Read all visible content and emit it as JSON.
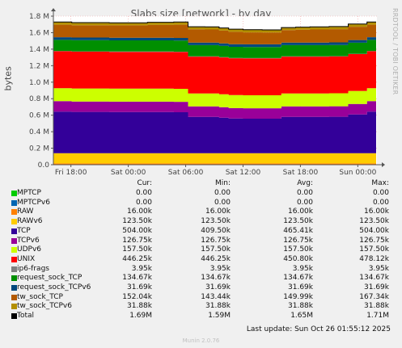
{
  "title": "Slabs size [network] - by day",
  "rrdtool_label": "RRDTOOL / TOBI OETIKER",
  "footer": {
    "last_update": "Last update: Sun Oct 26 01:55:12 2025",
    "munin": "Munin 2.0.76"
  },
  "legend_headers": {
    "cur": "Cur:",
    "min": "Min:",
    "avg": "Avg:",
    "max": "Max:"
  },
  "chart_data": {
    "type": "area",
    "stacked": true,
    "ylabel": "bytes",
    "ylim": [
      0,
      1800000
    ],
    "yticks": [
      0,
      200000,
      400000,
      600000,
      800000,
      1000000,
      1200000,
      1400000,
      1600000,
      1800000
    ],
    "ytick_labels": [
      "0.0",
      "0.2 M",
      "0.4 M",
      "0.6 M",
      "0.8 M",
      "1.0 M",
      "1.2 M",
      "1.4 M",
      "1.6 M",
      "1.8 M"
    ],
    "xlim": [
      "Fri 16:10",
      "Sun 02:00"
    ],
    "xticks": [
      "Fri 18:00",
      "Sat 00:00",
      "Sat 06:00",
      "Sat 12:00",
      "Sat 18:00",
      "Sun 00:00"
    ],
    "grid": true,
    "x": [
      "Fri 16:10",
      "Fri 20:00",
      "Sat 00:00",
      "Sat 04:00",
      "Sat 05:30",
      "Sat 07:00",
      "Sat 09:00",
      "Sat 10:00",
      "Sat 11:00",
      "Sat 13:00",
      "Sat 15:00",
      "Sat 17:00",
      "Sat 18:00",
      "Sat 20:00",
      "Sat 22:00",
      "Sun 00:00",
      "Sun 01:55"
    ],
    "series": [
      {
        "name": "MPTCP",
        "color": "#00cc00",
        "values": [
          0,
          0,
          0,
          0,
          0,
          0,
          0,
          0,
          0,
          0,
          0,
          0,
          0,
          0,
          0,
          0,
          0
        ],
        "cur": "0.00",
        "min": "0.00",
        "avg": "0.00",
        "max": "0.00"
      },
      {
        "name": "MPTCPv6",
        "color": "#0066b3",
        "values": [
          0,
          0,
          0,
          0,
          0,
          0,
          0,
          0,
          0,
          0,
          0,
          0,
          0,
          0,
          0,
          0,
          0
        ],
        "cur": "0.00",
        "min": "0.00",
        "avg": "0.00",
        "max": "0.00"
      },
      {
        "name": "RAW",
        "color": "#ff8000",
        "values": [
          16000,
          16000,
          16000,
          16000,
          16000,
          16000,
          16000,
          16000,
          16000,
          16000,
          16000,
          16000,
          16000,
          16000,
          16000,
          16000,
          16000
        ],
        "cur": "16.00k",
        "min": "16.00k",
        "avg": "16.00k",
        "max": "16.00k"
      },
      {
        "name": "RAWv6",
        "color": "#ffcc00",
        "values": [
          123500,
          123500,
          123500,
          123500,
          123500,
          123500,
          123500,
          123500,
          123500,
          123500,
          123500,
          123500,
          123500,
          123500,
          123500,
          123500,
          123500
        ],
        "cur": "123.50k",
        "min": "123.50k",
        "avg": "123.50k",
        "max": "123.50k"
      },
      {
        "name": "TCP",
        "color": "#330099",
        "values": [
          504000,
          500000,
          498000,
          498000,
          496000,
          440000,
          440000,
          430000,
          420000,
          418000,
          418000,
          440000,
          440000,
          440000,
          442000,
          470000,
          504000
        ],
        "cur": "504.00k",
        "min": "409.50k",
        "avg": "465.41k",
        "max": "504.00k"
      },
      {
        "name": "TCPv6",
        "color": "#990099",
        "values": [
          126750,
          126750,
          126750,
          126750,
          126750,
          126750,
          126750,
          126750,
          126750,
          126750,
          126750,
          126750,
          126750,
          126750,
          126750,
          126750,
          126750
        ],
        "cur": "126.75k",
        "min": "126.75k",
        "avg": "126.75k",
        "max": "126.75k"
      },
      {
        "name": "UDPv6",
        "color": "#ccff00",
        "values": [
          157500,
          157500,
          157500,
          157500,
          157500,
          157500,
          157500,
          157500,
          157500,
          157500,
          157500,
          157500,
          157500,
          157500,
          157500,
          157500,
          157500
        ],
        "cur": "157.50k",
        "min": "157.50k",
        "avg": "157.50k",
        "max": "157.50k"
      },
      {
        "name": "UNIX",
        "color": "#ff0000",
        "values": [
          446250,
          446250,
          446250,
          446250,
          446250,
          446250,
          446250,
          446250,
          446250,
          446250,
          446250,
          446250,
          446250,
          446250,
          446250,
          446250,
          446250
        ],
        "cur": "446.25k",
        "min": "446.25k",
        "avg": "450.80k",
        "max": "478.12k"
      },
      {
        "name": "ip6-frags",
        "color": "#808080",
        "values": [
          3950,
          3950,
          3950,
          3950,
          3950,
          3950,
          3950,
          3950,
          3950,
          3950,
          3950,
          3950,
          3950,
          3950,
          3950,
          3950,
          3950
        ],
        "cur": "3.95k",
        "min": "3.95k",
        "avg": "3.95k",
        "max": "3.95k"
      },
      {
        "name": "request_sock_TCP",
        "color": "#008f00",
        "values": [
          134670,
          134670,
          134670,
          134670,
          134670,
          134670,
          134670,
          134670,
          134670,
          134670,
          134670,
          134670,
          134670,
          134670,
          134670,
          134670,
          134670
        ],
        "cur": "134.67k",
        "min": "134.67k",
        "avg": "134.67k",
        "max": "134.67k"
      },
      {
        "name": "request_sock_TCPv6",
        "color": "#00487d",
        "values": [
          31690,
          31690,
          31690,
          31690,
          31690,
          31690,
          31690,
          31690,
          31690,
          31690,
          31690,
          31690,
          31690,
          31690,
          31690,
          31690,
          31690
        ],
        "cur": "31.69k",
        "min": "31.69k",
        "avg": "31.69k",
        "max": "31.69k"
      },
      {
        "name": "tw_sock_TCP",
        "color": "#b35a00",
        "values": [
          152040,
          150000,
          150000,
          155000,
          160000,
          160000,
          158000,
          155000,
          150000,
          145000,
          143440,
          150000,
          155000,
          158000,
          160000,
          162000,
          152040
        ],
        "cur": "152.04k",
        "min": "143.44k",
        "avg": "149.99k",
        "max": "167.34k"
      },
      {
        "name": "tw_sock_TCPv6",
        "color": "#b38f00",
        "values": [
          31880,
          31880,
          31880,
          31880,
          31880,
          31880,
          31880,
          31880,
          31880,
          31880,
          31880,
          31880,
          31880,
          31880,
          31880,
          31880,
          31880
        ],
        "cur": "31.88k",
        "min": "31.88k",
        "avg": "31.88k",
        "max": "31.88k"
      }
    ],
    "total": {
      "name": "Total",
      "color": "#000000",
      "cur": "1.69M",
      "min": "1.59M",
      "avg": "1.65M",
      "max": "1.71M"
    }
  }
}
